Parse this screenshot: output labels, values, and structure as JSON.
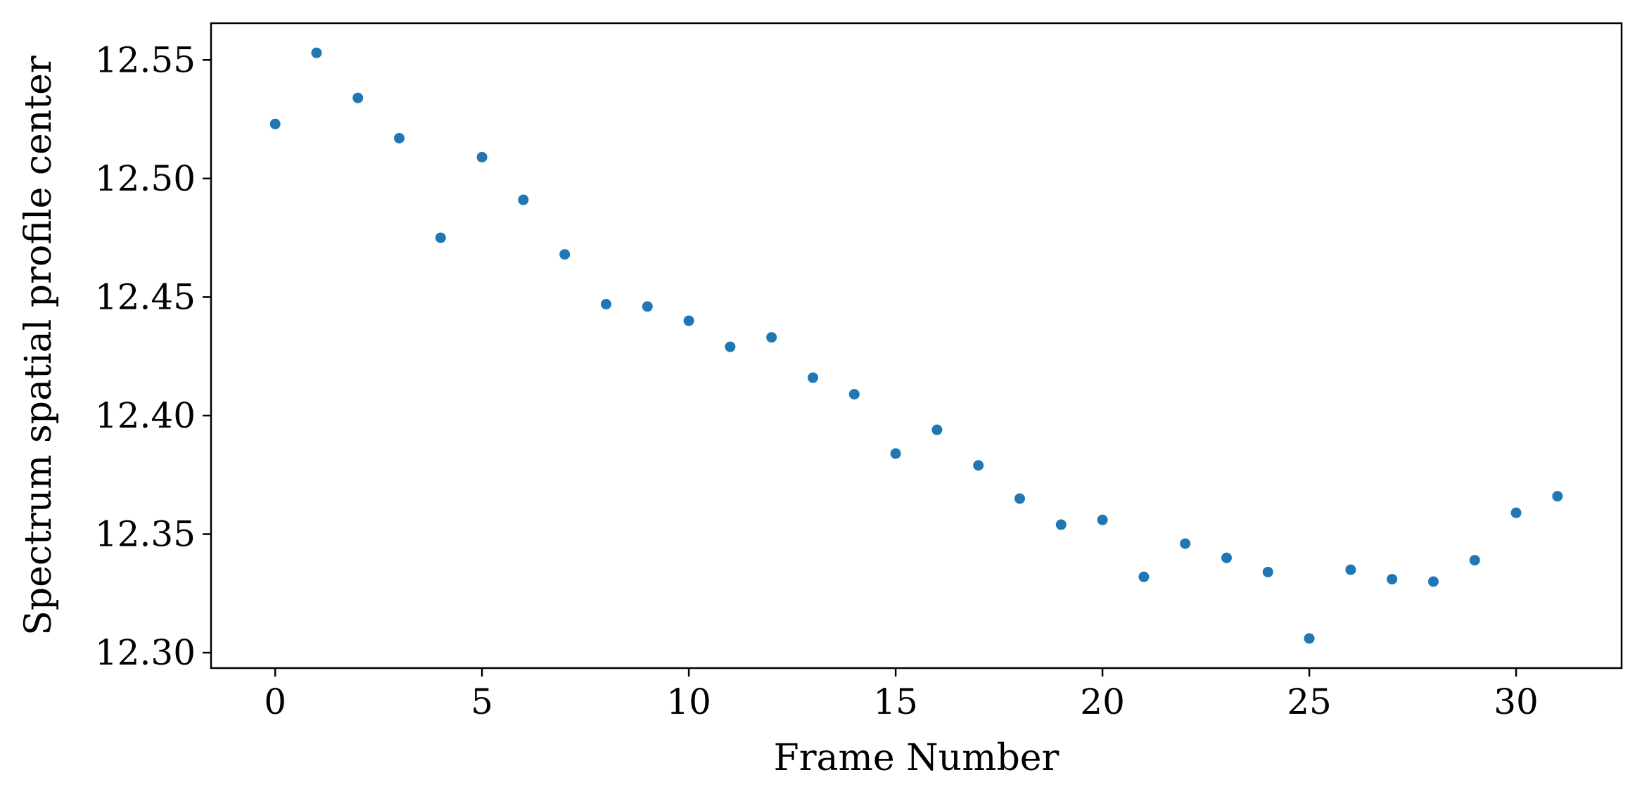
{
  "chart_data": {
    "type": "scatter",
    "title": "",
    "xlabel": "Frame Number",
    "ylabel": "Spectrum spatial profile center",
    "xlim": [
      -1.55,
      32.55
    ],
    "ylim": [
      12.2935,
      12.5655
    ],
    "xticks": [
      0,
      5,
      10,
      15,
      20,
      25,
      30
    ],
    "xtick_labels": [
      "0",
      "5",
      "10",
      "15",
      "20",
      "25",
      "30"
    ],
    "yticks": [
      12.3,
      12.35,
      12.4,
      12.45,
      12.5,
      12.55
    ],
    "ytick_labels": [
      "12.30",
      "12.35",
      "12.40",
      "12.45",
      "12.50",
      "12.55"
    ],
    "grid": false,
    "legend": "none",
    "marker_color": "#1f77b4",
    "series": [
      {
        "x": [
          0,
          1,
          2,
          3,
          4,
          5,
          6,
          7,
          8,
          9,
          10,
          11,
          12,
          13,
          14,
          15,
          16,
          17,
          18,
          19,
          20,
          21,
          22,
          23,
          24,
          25,
          26,
          27,
          28,
          29,
          30,
          31
        ],
        "y": [
          12.523,
          12.553,
          12.534,
          12.517,
          12.475,
          12.509,
          12.491,
          12.468,
          12.447,
          12.446,
          12.44,
          12.429,
          12.433,
          12.416,
          12.409,
          12.384,
          12.394,
          12.379,
          12.365,
          12.354,
          12.356,
          12.332,
          12.346,
          12.34,
          12.334,
          12.306,
          12.335,
          12.331,
          12.33,
          12.339,
          12.359,
          12.366
        ]
      }
    ]
  }
}
